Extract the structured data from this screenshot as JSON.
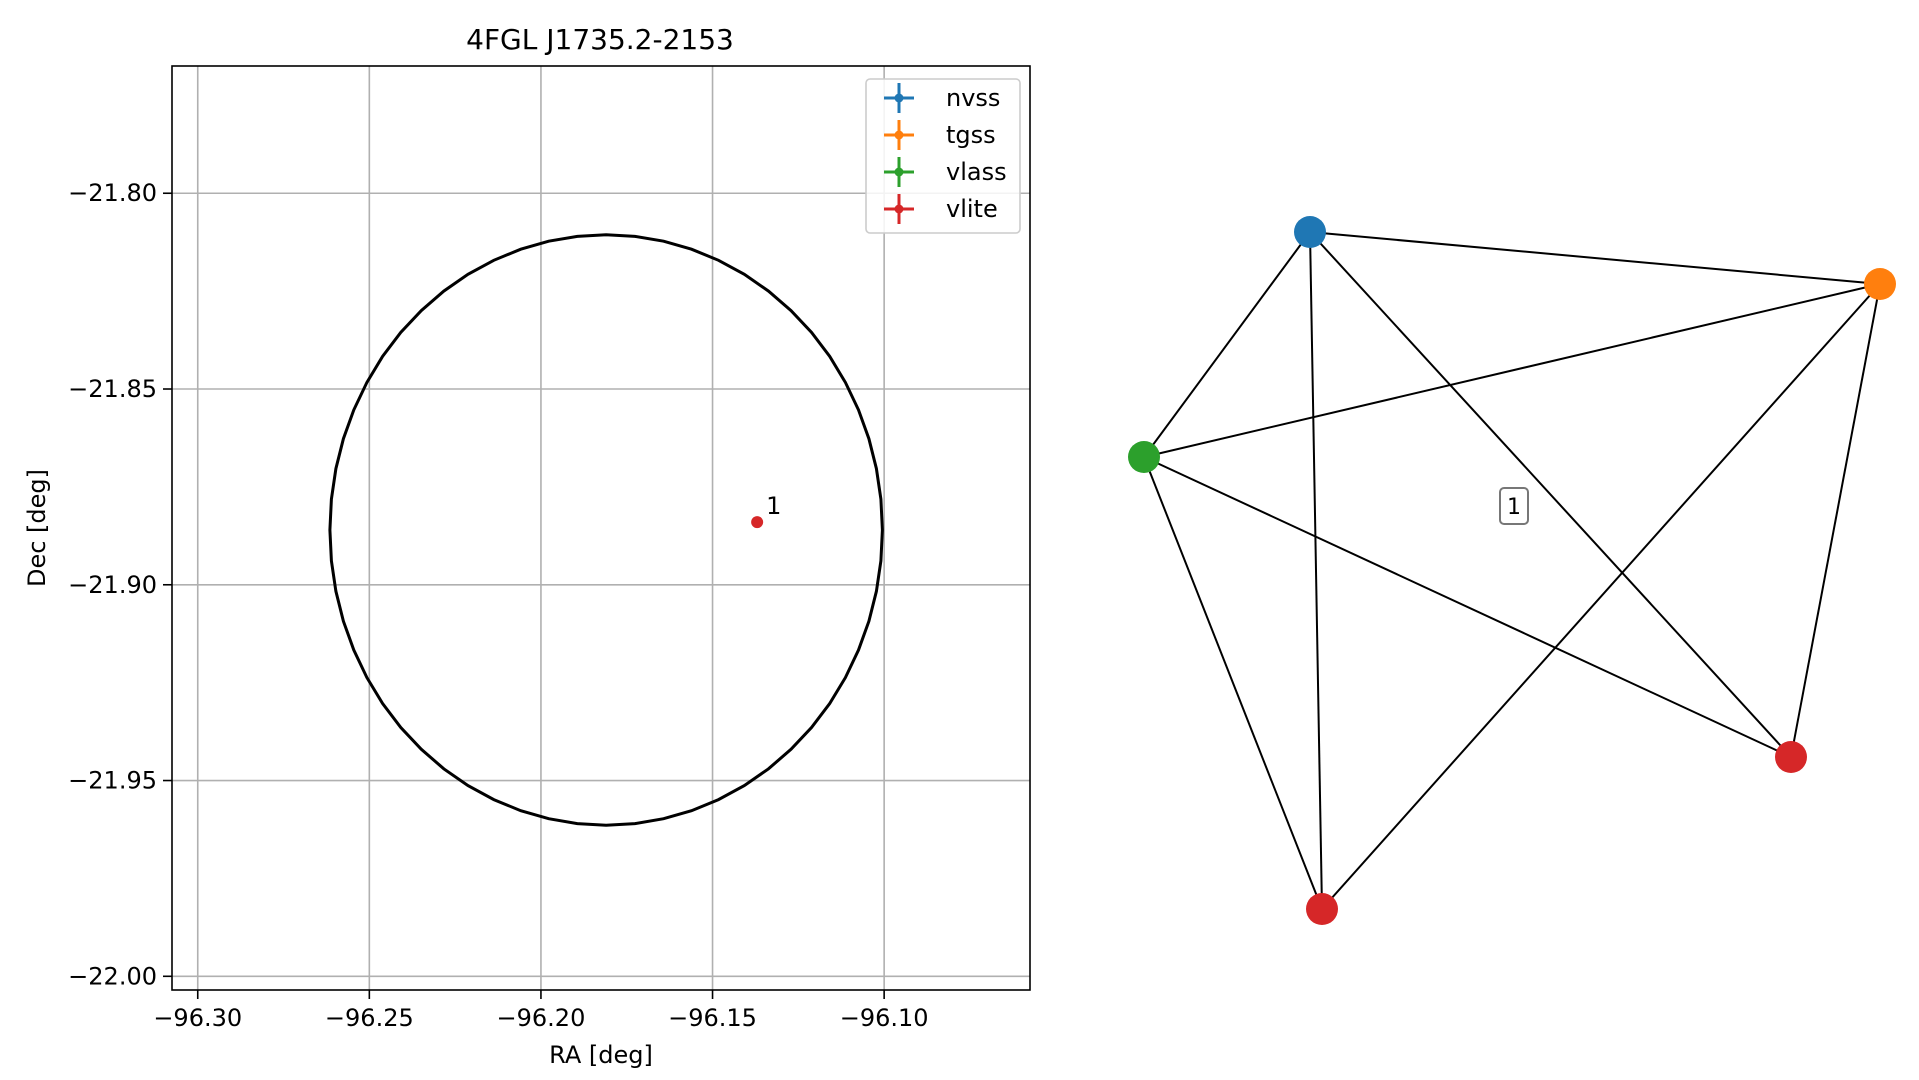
{
  "chart_data": [
    {
      "type": "scatter",
      "title": "4FGL J1735.2-2153",
      "xlabel": "RA [deg]",
      "ylabel": "Dec [deg]",
      "xlim": [
        -96.3075,
        -96.0575
      ],
      "ylim": [
        -22.0035,
        -21.7675
      ],
      "x_ticks": [
        -96.3,
        -96.25,
        -96.2,
        -96.15,
        -96.1
      ],
      "x_tick_labels": [
        "−96.30",
        "−96.25",
        "−96.20",
        "−96.15",
        "−96.10"
      ],
      "y_ticks": [
        -21.8,
        -21.85,
        -21.9,
        -21.95,
        -22.0
      ],
      "y_tick_labels": [
        "−21.80",
        "−21.85",
        "−21.90",
        "−21.95",
        "−22.00"
      ],
      "grid": true,
      "legend_position": "top-right",
      "legend": [
        {
          "name": "nvss",
          "color": "#1f77b4"
        },
        {
          "name": "tgss",
          "color": "#ff7f0e"
        },
        {
          "name": "vlass",
          "color": "#2ca02c"
        },
        {
          "name": "vlite",
          "color": "#d62728"
        }
      ],
      "ellipse": {
        "center": [
          -96.181,
          -21.886
        ],
        "semi_axis_ra": 0.0805,
        "semi_axis_dec": 0.0754,
        "color": "#000000"
      },
      "points": [
        {
          "label": "1",
          "ra": -96.137,
          "dec": -21.884,
          "color": "#d62728"
        }
      ]
    },
    {
      "type": "network",
      "cluster_label": "1",
      "nodes": [
        {
          "id": "nvss",
          "color": "#1f77b4"
        },
        {
          "id": "tgss",
          "color": "#ff7f0e"
        },
        {
          "id": "vlass",
          "color": "#2ca02c"
        },
        {
          "id": "vlite_a",
          "color": "#d62728"
        },
        {
          "id": "vlite_b",
          "color": "#d62728"
        }
      ],
      "edges": [
        [
          "nvss",
          "tgss"
        ],
        [
          "nvss",
          "vlass"
        ],
        [
          "nvss",
          "vlite_a"
        ],
        [
          "nvss",
          "vlite_b"
        ],
        [
          "tgss",
          "vlass"
        ],
        [
          "tgss",
          "vlite_a"
        ],
        [
          "tgss",
          "vlite_b"
        ],
        [
          "vlass",
          "vlite_a"
        ],
        [
          "vlass",
          "vlite_b"
        ]
      ]
    }
  ]
}
